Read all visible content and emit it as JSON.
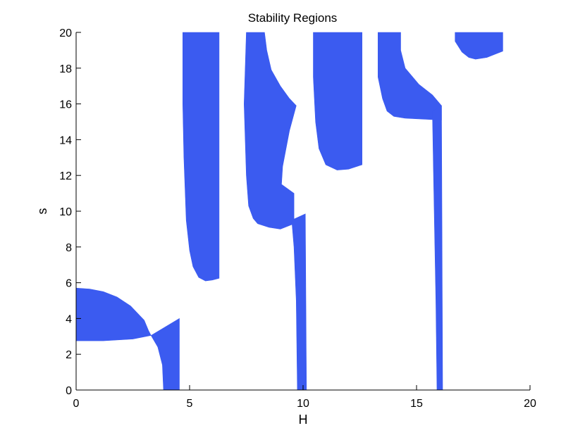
{
  "colors": {
    "region_fill": "#3b5bf0",
    "axis": "#000000",
    "background": "#ffffff"
  },
  "chart_data": {
    "type": "area",
    "title": "Stability Regions",
    "xlabel": "H",
    "ylabel": "s",
    "xlim": [
      0,
      20
    ],
    "ylim": [
      0,
      20
    ],
    "xticks": [
      0,
      5,
      10,
      15,
      20
    ],
    "yticks": [
      0,
      2,
      4,
      6,
      8,
      10,
      12,
      14,
      16,
      18,
      20
    ],
    "grid": false,
    "legend": "none",
    "series": [
      {
        "regions": [
          [
            [
              0,
              5.7
            ],
            [
              0.6,
              5.65
            ],
            [
              1.2,
              5.5
            ],
            [
              1.8,
              5.2
            ],
            [
              2.4,
              4.7
            ],
            [
              3.0,
              3.9
            ],
            [
              3.2,
              3.3
            ],
            [
              3.3,
              3.05
            ],
            [
              3.6,
              2.4
            ],
            [
              3.8,
              1.4
            ],
            [
              3.85,
              0
            ],
            [
              4.55,
              0
            ],
            [
              4.55,
              4.0
            ],
            [
              3.3,
              3.05
            ],
            [
              2.5,
              2.85
            ],
            [
              1.2,
              2.75
            ],
            [
              0,
              2.75
            ]
          ],
          [
            [
              4.7,
              20
            ],
            [
              6.3,
              20
            ],
            [
              6.3,
              6.25
            ],
            [
              6.0,
              6.15
            ],
            [
              5.7,
              6.1
            ],
            [
              5.4,
              6.3
            ],
            [
              5.15,
              6.9
            ],
            [
              5.0,
              7.8
            ],
            [
              4.85,
              9.5
            ],
            [
              4.75,
              13
            ],
            [
              4.7,
              16
            ]
          ],
          [
            [
              7.5,
              20
            ],
            [
              8.3,
              20
            ],
            [
              8.4,
              19
            ],
            [
              8.6,
              17.9
            ],
            [
              9.0,
              17.0
            ],
            [
              9.4,
              16.3
            ],
            [
              9.7,
              15.9
            ],
            [
              9.4,
              14.5
            ],
            [
              9.1,
              12.5
            ],
            [
              9.05,
              11.5
            ],
            [
              9.6,
              11.0
            ],
            [
              9.6,
              9.3
            ],
            [
              9.0,
              9.0
            ],
            [
              8.5,
              9.1
            ],
            [
              8.0,
              9.3
            ],
            [
              7.8,
              9.6
            ],
            [
              7.6,
              10.3
            ],
            [
              7.5,
              12
            ],
            [
              7.4,
              16
            ]
          ],
          [
            [
              9.5,
              9.5
            ],
            [
              10.1,
              9.85
            ],
            [
              10.15,
              0
            ],
            [
              9.75,
              0
            ],
            [
              9.7,
              5
            ],
            [
              9.6,
              8
            ]
          ],
          [
            [
              10.45,
              20
            ],
            [
              12.6,
              20
            ],
            [
              12.6,
              12.6
            ],
            [
              12.0,
              12.35
            ],
            [
              11.5,
              12.3
            ],
            [
              11.0,
              12.6
            ],
            [
              10.7,
              13.5
            ],
            [
              10.55,
              15
            ],
            [
              10.45,
              17.5
            ]
          ],
          [
            [
              13.3,
              20
            ],
            [
              14.3,
              20
            ],
            [
              14.3,
              19
            ],
            [
              14.5,
              18.0
            ],
            [
              15.1,
              17.1
            ],
            [
              15.7,
              16.5
            ],
            [
              16.1,
              15.9
            ],
            [
              16.1,
              15.1
            ],
            [
              14.5,
              15.2
            ],
            [
              14.0,
              15.3
            ],
            [
              13.7,
              15.6
            ],
            [
              13.5,
              16.3
            ],
            [
              13.3,
              17.5
            ]
          ],
          [
            [
              15.7,
              15.6
            ],
            [
              16.1,
              15.9
            ],
            [
              16.15,
              0
            ],
            [
              15.9,
              0
            ],
            [
              15.85,
              5
            ],
            [
              15.75,
              12
            ]
          ],
          [
            [
              16.7,
              20
            ],
            [
              18.8,
              20
            ],
            [
              18.8,
              18.95
            ],
            [
              18.5,
              18.8
            ],
            [
              18.1,
              18.6
            ],
            [
              17.6,
              18.5
            ],
            [
              17.3,
              18.6
            ],
            [
              17.0,
              18.9
            ],
            [
              16.7,
              19.5
            ]
          ]
        ]
      }
    ]
  }
}
